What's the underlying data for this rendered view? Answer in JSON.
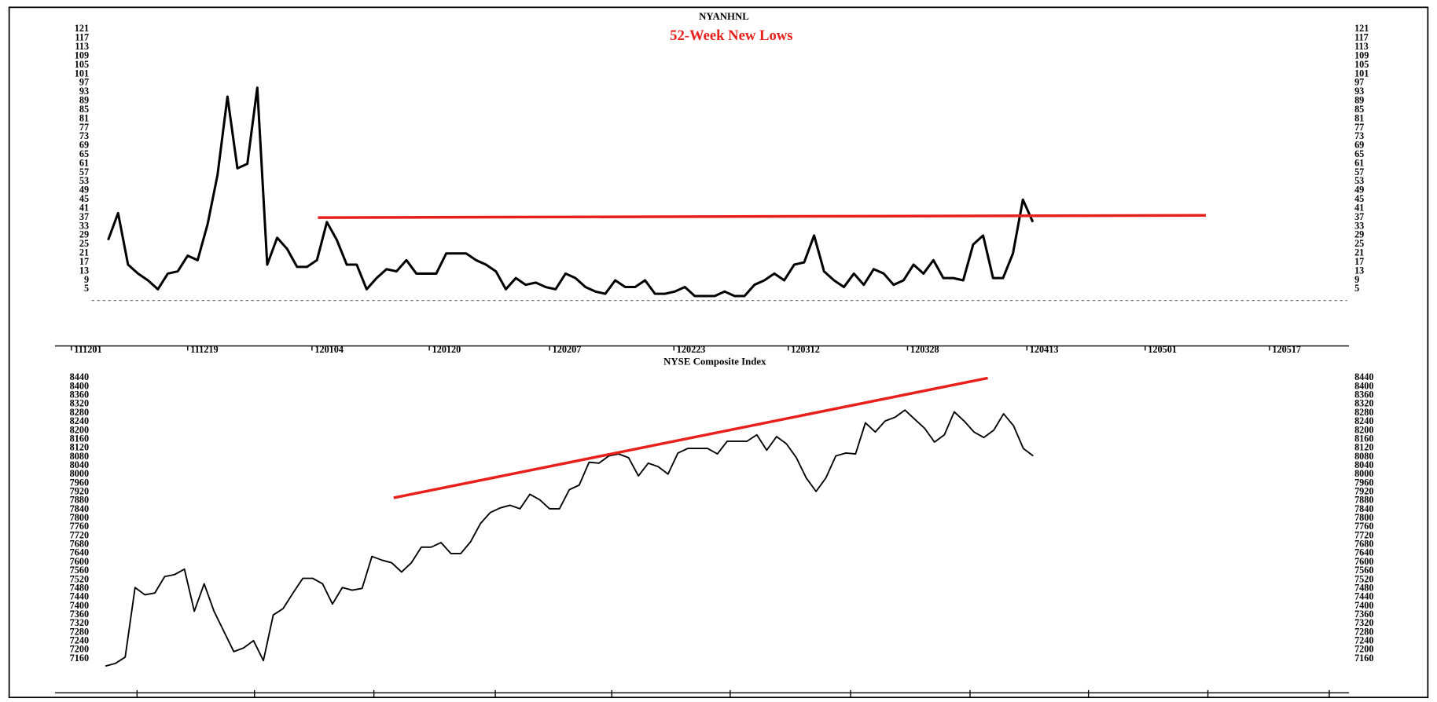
{
  "chart_data": [
    {
      "type": "line",
      "title": "NYANHNL",
      "subtitle": "52-Week New Lows",
      "color": "#000000",
      "x": [
        0,
        1,
        2,
        3,
        4,
        5,
        6,
        7,
        8,
        9,
        10,
        11,
        12,
        13,
        14,
        15,
        16,
        17,
        18,
        19,
        20,
        21,
        22,
        23,
        24,
        25,
        26,
        27,
        28,
        29,
        30,
        31,
        32,
        33,
        34,
        35,
        36,
        37,
        38,
        39,
        40,
        41,
        42,
        43,
        44,
        45,
        46,
        47,
        48,
        49,
        50,
        51,
        52,
        53,
        54,
        55,
        56,
        57,
        58,
        59,
        60,
        61,
        62,
        63,
        64,
        65,
        66,
        67,
        68,
        69,
        70,
        71,
        72,
        73,
        74,
        75,
        76,
        77,
        78,
        79,
        80,
        81,
        82,
        83,
        84,
        85,
        86,
        87,
        88,
        89,
        90,
        91,
        92,
        93
      ],
      "values": [
        27,
        39,
        16,
        12,
        9,
        5,
        12,
        13,
        20,
        18,
        34,
        56,
        91,
        59,
        61,
        95,
        16,
        28,
        23,
        15,
        15,
        18,
        35,
        27,
        16,
        16,
        5,
        10,
        14,
        13,
        18,
        12,
        12,
        12,
        21,
        21,
        21,
        18,
        16,
        13,
        5,
        10,
        7,
        8,
        6,
        5,
        12,
        10,
        6,
        4,
        3,
        9,
        6,
        6,
        9,
        3,
        3,
        4,
        6,
        2,
        2,
        2,
        4,
        2,
        2,
        7,
        9,
        12,
        9,
        16,
        17,
        29,
        13,
        9,
        6,
        12,
        7,
        14,
        12,
        7,
        9,
        16,
        12,
        18,
        10,
        10,
        9,
        25,
        29,
        10,
        10,
        21,
        45,
        35
      ],
      "xlim": [
        -1.66,
        124.8
      ],
      "xticks": [
        {
          "value": -3.7,
          "label": "111201"
        },
        {
          "value": 8.0,
          "label": "111219"
        },
        {
          "value": 20.5,
          "label": "120104"
        },
        {
          "value": 32.3,
          "label": "120120"
        },
        {
          "value": 44.4,
          "label": "120207"
        },
        {
          "value": 56.9,
          "label": "120223"
        },
        {
          "value": 68.4,
          "label": "120312"
        },
        {
          "value": 80.4,
          "label": "120328"
        },
        {
          "value": 92.4,
          "label": "120413"
        },
        {
          "value": 104.3,
          "label": "120501"
        },
        {
          "value": 116.8,
          "label": "120517"
        }
      ],
      "ylim": [
        -20.3,
        123.9
      ],
      "yticks": [
        5,
        9,
        13,
        17,
        21,
        25,
        29,
        33,
        37,
        41,
        45,
        49,
        53,
        57,
        61,
        65,
        69,
        73,
        77,
        81,
        85,
        89,
        93,
        97,
        101,
        105,
        109,
        113,
        117,
        121
      ],
      "baseline": 0,
      "trendline": {
        "x": [
          21.1,
          110.4
        ],
        "values": [
          37,
          38
        ],
        "color": "#e8201c"
      }
    },
    {
      "type": "line",
      "title": "NYSE Composite Index",
      "color": "#000000",
      "x": [
        0,
        1,
        2,
        3,
        4,
        5,
        6,
        7,
        8,
        9,
        10,
        11,
        12,
        13,
        14,
        15,
        16,
        17,
        18,
        19,
        20,
        21,
        22,
        23,
        24,
        25,
        26,
        27,
        28,
        29,
        30,
        31,
        32,
        33,
        34,
        35,
        36,
        37,
        38,
        39,
        40,
        41,
        42,
        43,
        44,
        45,
        46,
        47,
        48,
        49,
        50,
        51,
        52,
        53,
        54,
        55,
        56,
        57,
        58,
        59,
        60,
        61,
        62,
        63,
        64,
        65,
        66,
        67,
        68,
        69,
        70,
        71,
        72,
        73,
        74,
        75,
        76,
        77,
        78,
        79,
        80,
        81,
        82,
        83,
        84,
        85,
        86,
        87,
        88,
        89,
        90,
        91,
        92,
        93,
        94
      ],
      "values": [
        7127,
        7139,
        7168,
        7485,
        7452,
        7460,
        7535,
        7544,
        7569,
        7377,
        7502,
        7377,
        7285,
        7193,
        7210,
        7243,
        7152,
        7360,
        7389,
        7460,
        7527,
        7527,
        7502,
        7410,
        7485,
        7473,
        7481,
        7627,
        7610,
        7598,
        7556,
        7598,
        7669,
        7669,
        7690,
        7640,
        7640,
        7694,
        7777,
        7827,
        7848,
        7860,
        7844,
        7910,
        7885,
        7844,
        7844,
        7931,
        7952,
        8056,
        8052,
        8085,
        8094,
        8077,
        7994,
        8052,
        8036,
        8002,
        8098,
        8119,
        8119,
        8119,
        8094,
        8152,
        8152,
        8152,
        8181,
        8111,
        8173,
        8140,
        8077,
        7985,
        7923,
        7985,
        8085,
        8098,
        8094,
        8236,
        8194,
        8244,
        8261,
        8294,
        8252,
        8211,
        8148,
        8181,
        8286,
        8244,
        8194,
        8169,
        8202,
        8277,
        8223,
        8119,
        8085
      ],
      "xlim": [
        -1.4,
        126.0
      ],
      "xticks": [
        3.2,
        15.1,
        27.2,
        39.5,
        51.3,
        63.3,
        75.5,
        87.6,
        99.6,
        111.7,
        124.0
      ],
      "ylim": [
        7005,
        8486
      ],
      "yticks": [
        7160,
        7200,
        7240,
        7280,
        7320,
        7360,
        7400,
        7440,
        7480,
        7520,
        7560,
        7600,
        7640,
        7680,
        7720,
        7760,
        7800,
        7840,
        7880,
        7920,
        7960,
        8000,
        8040,
        8080,
        8120,
        8160,
        8200,
        8240,
        8280,
        8320,
        8360,
        8400,
        8440
      ],
      "trendline": {
        "x": [
          29.2,
          89.4
        ],
        "values": [
          7894,
          8440
        ],
        "color": "#e8201c"
      }
    }
  ]
}
